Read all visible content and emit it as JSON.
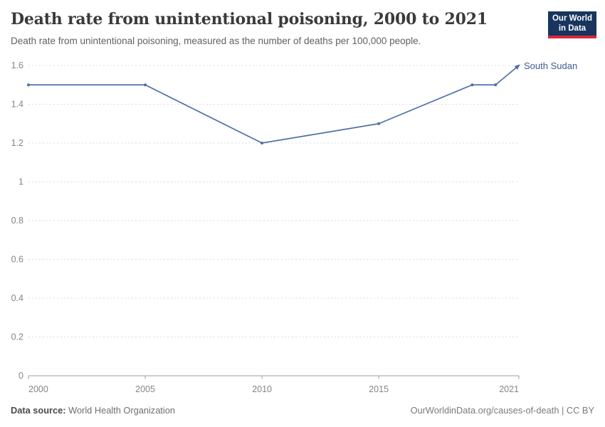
{
  "header": {
    "title": "Death rate from unintentional poisoning, 2000 to 2021",
    "subtitle": "Death rate from unintentional poisoning, measured as the number of deaths per 100,000 people.",
    "logo": {
      "line1": "Our World",
      "line2": "in Data"
    }
  },
  "chart_data": {
    "type": "line",
    "title": "Death rate from unintentional poisoning, 2000 to 2021",
    "subtitle": "Death rate from unintentional poisoning, measured as the number of deaths per 100,000 people.",
    "xlabel": "",
    "ylabel": "",
    "xlim": [
      2000,
      2021
    ],
    "ylim": [
      0,
      1.6
    ],
    "x_ticks": [
      2000,
      2005,
      2010,
      2015,
      2021
    ],
    "y_ticks": [
      0,
      0.2,
      0.4,
      0.6,
      0.8,
      1,
      1.2,
      1.4,
      1.6
    ],
    "grid": "horizontal-dashed",
    "legend_position": "end-of-line-label",
    "series": [
      {
        "name": "South Sudan",
        "color": "#4C6EA8",
        "x": [
          2000,
          2005,
          2010,
          2015,
          2019,
          2020,
          2021
        ],
        "y": [
          1.5,
          1.5,
          1.2,
          1.3,
          1.5,
          1.5,
          1.6
        ]
      }
    ]
  },
  "footer": {
    "data_source_label": "Data source:",
    "data_source_value": "World Health Organization",
    "attribution": "OurWorldinData.org/causes-of-death | CC BY"
  },
  "colors": {
    "line": "#4C6EA8",
    "entity_label": "#3d5c94",
    "grid": "#dcdcdc",
    "axis": "#9e9e9e",
    "tick_label": "#858585",
    "logo_bg": "#18355e",
    "logo_stripe": "#d8273d"
  }
}
